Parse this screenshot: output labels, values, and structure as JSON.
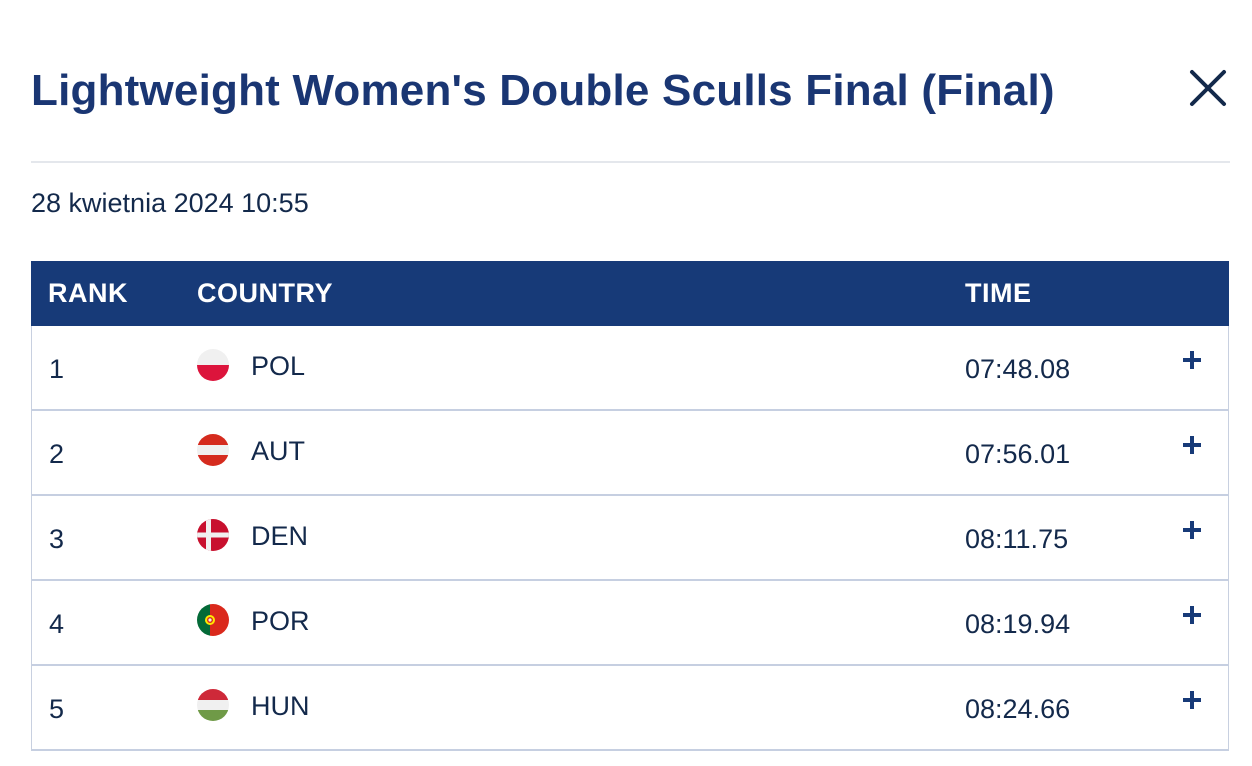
{
  "modal": {
    "title": "Lightweight Women's Double Sculls Final (Final)",
    "close_icon": "close-icon",
    "date": "28 kwietnia 2024 10:55"
  },
  "table": {
    "headers": {
      "rank": "RANK",
      "country": "COUNTRY",
      "time": "TIME"
    },
    "rows": [
      {
        "rank": "1",
        "country": "POL",
        "time": "07:48.08",
        "flag": "poland-flag-icon",
        "expand_icon": "plus-icon"
      },
      {
        "rank": "2",
        "country": "AUT",
        "time": "07:56.01",
        "flag": "austria-flag-icon",
        "expand_icon": "plus-icon"
      },
      {
        "rank": "3",
        "country": "DEN",
        "time": "08:11.75",
        "flag": "denmark-flag-icon",
        "expand_icon": "plus-icon"
      },
      {
        "rank": "4",
        "country": "POR",
        "time": "08:19.94",
        "flag": "portugal-flag-icon",
        "expand_icon": "plus-icon"
      },
      {
        "rank": "5",
        "country": "HUN",
        "time": "08:24.66",
        "flag": "hungary-flag-icon",
        "expand_icon": "plus-icon"
      }
    ]
  },
  "colors": {
    "title": "#1a3673",
    "header_bg": "#173a78",
    "header_text": "#ffffff",
    "text": "#13294b",
    "row_border": "#c6cfe1"
  }
}
